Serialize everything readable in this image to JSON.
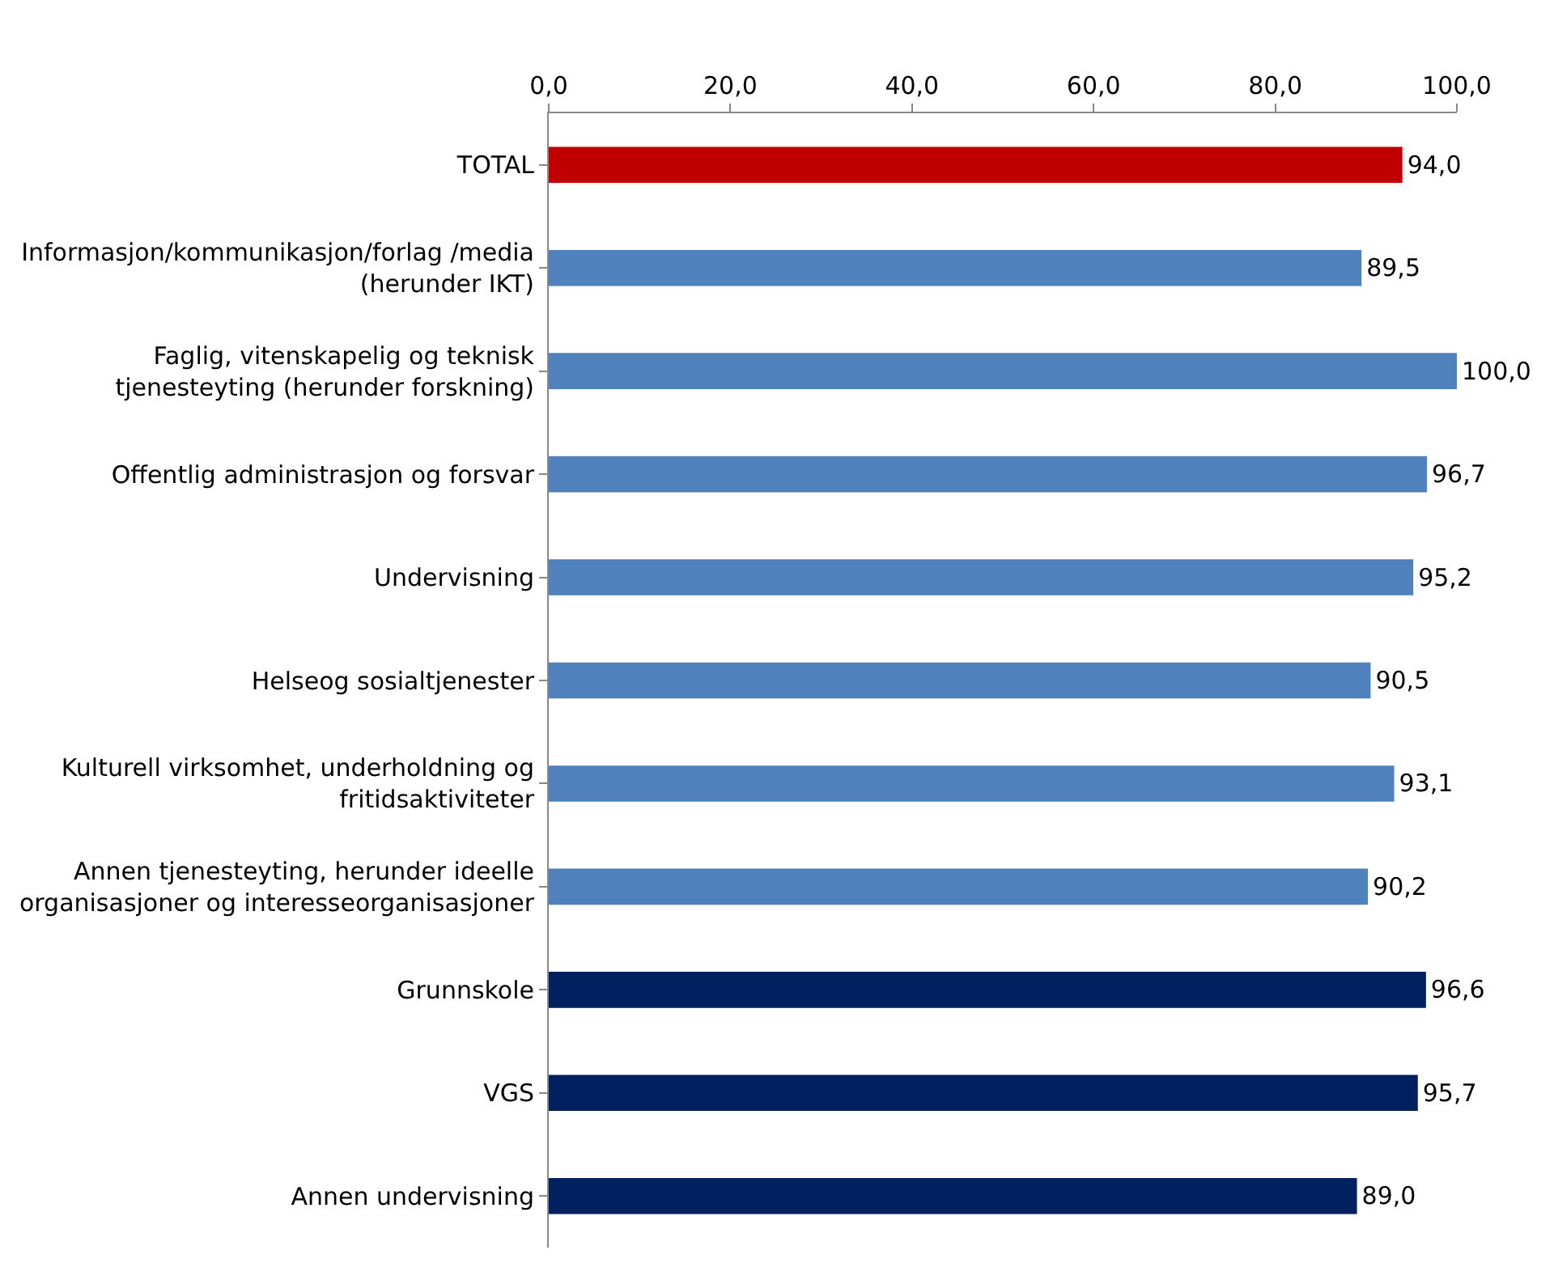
{
  "chart_data": {
    "type": "bar",
    "orientation": "horizontal",
    "categories": [
      "TOTAL",
      "Informasjon/kommunikasjon/forlag /media\n(herunder IKT)",
      "Faglig, vitenskapelig og teknisk\ntjenesteyting (herunder forskning)",
      "Offentlig administrasjon og forsvar",
      "Undervisning",
      "Helseog sosialtjenester",
      "Kulturell virksomhet, underholdning og\nfritidsaktiviteter",
      "Annen tjenesteyting, herunder ideelle\norganisasjoner og interesseorganisasjoner",
      "Grunnskole",
      "VGS",
      "Annen undervisning"
    ],
    "values": [
      94.0,
      89.5,
      100.0,
      96.7,
      95.2,
      90.5,
      93.1,
      90.2,
      96.6,
      95.7,
      89.0
    ],
    "colors": [
      "#c00000",
      "#4f81bd",
      "#4f81bd",
      "#4f81bd",
      "#4f81bd",
      "#4f81bd",
      "#4f81bd",
      "#4f81bd",
      "#002060",
      "#002060",
      "#002060"
    ],
    "value_labels": [
      "94,0",
      "89,5",
      "100,0",
      "96,7",
      "95,2",
      "90,5",
      "93,1",
      "90,2",
      "96,6",
      "95,7",
      "89,0"
    ],
    "xlim": [
      0,
      100
    ],
    "xticks": [
      {
        "value": 0,
        "label": "0,0"
      },
      {
        "value": 20,
        "label": "20,0"
      },
      {
        "value": 40,
        "label": "40,0"
      },
      {
        "value": 60,
        "label": "60,0"
      },
      {
        "value": 80,
        "label": "80,0"
      },
      {
        "value": 100,
        "label": "100,0"
      }
    ],
    "legend": false
  }
}
